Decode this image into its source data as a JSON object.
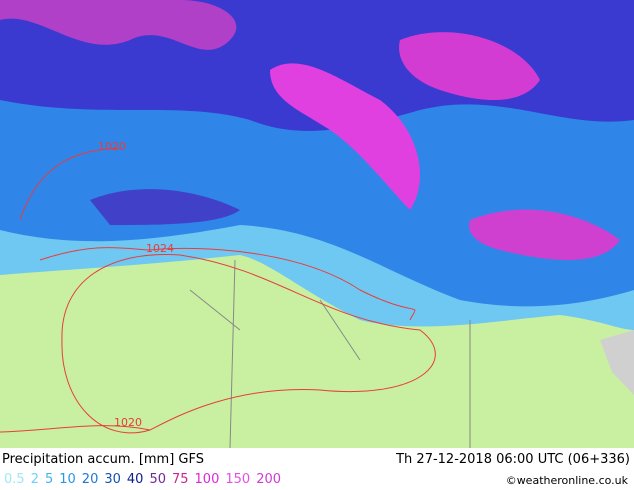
{
  "header": {
    "title": "Precipitation accum. [mm] GFS",
    "valid_time": "Th 27-12-2018 06:00 UTC (06+336)"
  },
  "legend": {
    "items": [
      {
        "value": 0.5,
        "color": "#9ee8f8"
      },
      {
        "value": 2,
        "color": "#6cd2f8"
      },
      {
        "value": 5,
        "color": "#3cb4f0"
      },
      {
        "value": 10,
        "color": "#2896e6"
      },
      {
        "value": 20,
        "color": "#1e78d2"
      },
      {
        "value": 30,
        "color": "#1450b4"
      },
      {
        "value": 40,
        "color": "#0a1e8c"
      },
      {
        "value": 50,
        "color": "#6e2896"
      },
      {
        "value": 75,
        "color": "#c8288c"
      },
      {
        "value": 100,
        "color": "#dc28dc"
      },
      {
        "value": 150,
        "color": "#e650e6"
      },
      {
        "value": 200,
        "color": "#d23cd2"
      }
    ]
  },
  "isobars": [
    {
      "label": 1020
    },
    {
      "label": 1024
    },
    {
      "label": 1020
    }
  ],
  "credit": "©weatheronline.co.uk"
}
